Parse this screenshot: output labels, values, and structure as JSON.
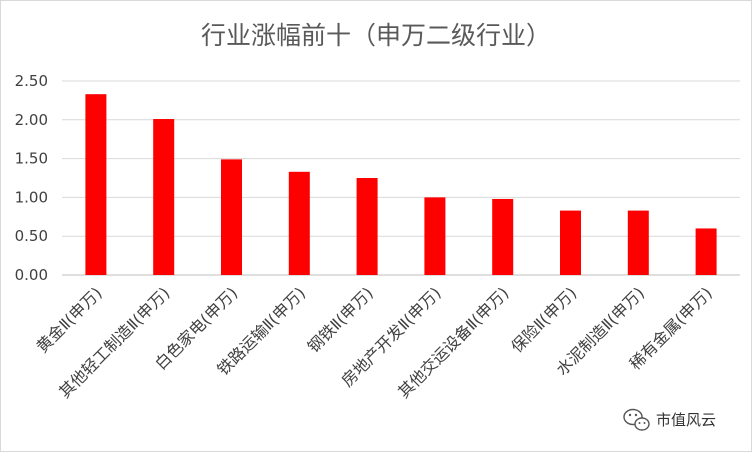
{
  "chart_data": {
    "type": "bar",
    "title": "行业涨幅前十（申万二级行业）",
    "xlabel": "",
    "ylabel": "",
    "ylim": [
      0,
      2.5
    ],
    "yticks": [
      "0.00",
      "0.50",
      "1.00",
      "1.50",
      "2.00",
      "2.50"
    ],
    "grid": true,
    "categories": [
      "黄金Ⅱ(申万)",
      "其他轻工制造Ⅱ(申万)",
      "白色家电(申万)",
      "铁路运输Ⅱ(申万)",
      "钢铁Ⅱ(申万)",
      "房地产开发Ⅱ(申万)",
      "其他交运设备Ⅱ(申万)",
      "保险Ⅱ(申万)",
      "水泥制造Ⅱ(申万)",
      "稀有金属(申万)"
    ],
    "values": [
      2.33,
      2.01,
      1.49,
      1.33,
      1.25,
      1.0,
      0.98,
      0.83,
      0.83,
      0.6
    ],
    "bar_color": "#ff0000"
  },
  "watermark": {
    "text": "市值风云",
    "icon": "wechat-icon"
  }
}
